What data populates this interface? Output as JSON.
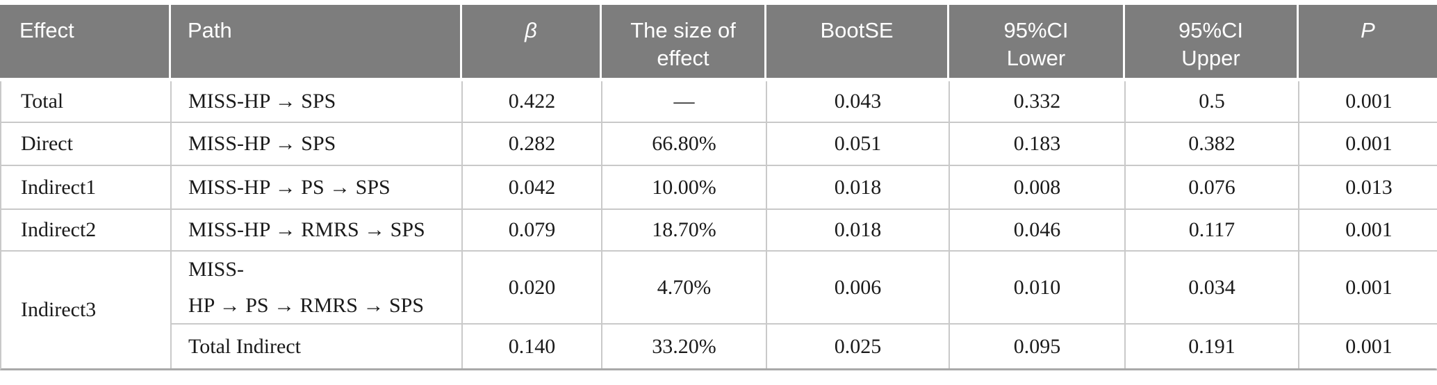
{
  "table": {
    "header": {
      "effect": [
        "Effect"
      ],
      "path": [
        "Path"
      ],
      "beta": [
        "β"
      ],
      "size_of_effect": [
        "The size of",
        "effect"
      ],
      "bootse": [
        "BootSE"
      ],
      "ci_lower": [
        "95%CI",
        "Lower"
      ],
      "ci_upper": [
        "95%CI",
        "Upper"
      ],
      "p": [
        "P"
      ]
    },
    "rows": [
      {
        "effect": "Total",
        "path": "MISS-HP → SPS",
        "beta": "0.422",
        "size": "—",
        "bootse": "0.043",
        "lower": "0.332",
        "upper": "0.5",
        "p": "0.001"
      },
      {
        "effect": "Direct",
        "path": "MISS-HP → SPS",
        "beta": "0.282",
        "size": "66.80%",
        "bootse": "0.051",
        "lower": "0.183",
        "upper": "0.382",
        "p": "0.001"
      },
      {
        "effect": "Indirect1",
        "path": "MISS-HP → PS → SPS",
        "beta": "0.042",
        "size": "10.00%",
        "bootse": "0.018",
        "lower": "0.008",
        "upper": "0.076",
        "p": "0.013"
      },
      {
        "effect": "Indirect2",
        "path": "MISS-HP → RMRS → SPS",
        "beta": "0.079",
        "size": "18.70%",
        "bootse": "0.018",
        "lower": "0.046",
        "upper": "0.117",
        "p": "0.001"
      },
      {
        "effect": "Indirect3",
        "path_lines": [
          "MISS-",
          "HP → PS → RMRS → SPS"
        ],
        "beta": "0.020",
        "size": "4.70%",
        "bootse": "0.006",
        "lower": "0.010",
        "upper": "0.034",
        "p": "0.001"
      },
      {
        "path": "Total Indirect",
        "beta": "0.140",
        "size": "33.20%",
        "bootse": "0.025",
        "lower": "0.095",
        "upper": "0.191",
        "p": "0.001"
      }
    ],
    "colors": {
      "header_bg": "#7d7d7d",
      "header_text": "#ffffff",
      "body_text": "#1a1a1a",
      "grid_border": "#c9c9c9",
      "bottom_border": "#a9a9a9"
    }
  }
}
